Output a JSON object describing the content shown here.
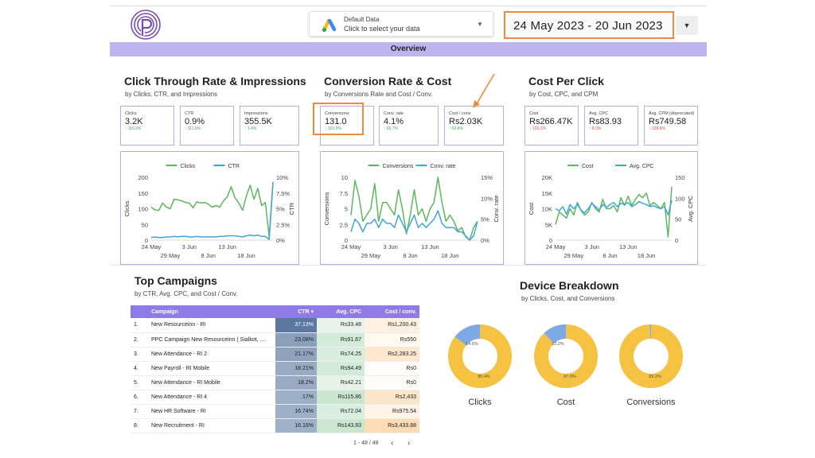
{
  "header": {
    "data_source": {
      "title": "Default Data",
      "subtitle": "Click to select your data",
      "icon": "google-ads-icon"
    },
    "date_range": "24 May 2023 - 20 Jun 2023",
    "overview_label": "Overview"
  },
  "sections": {
    "ctr": {
      "title": "Click Through Rate & Impressions",
      "subtitle": "by Clicks, CTR, and Impressions"
    },
    "conv": {
      "title": "Conversion Rate & Cost",
      "subtitle": "by Conversions Rate and Cost / Conv."
    },
    "cpc": {
      "title": "Cost Per Click",
      "subtitle": "by Cost, CPC, and CPM"
    },
    "campaigns": {
      "title": "Top Campaigns",
      "subtitle": "by CTR, Avg. CPC, and Cost / Conv."
    },
    "device": {
      "title": "Device Breakdown",
      "subtitle": "by Clicks, Cost, and Conversions"
    }
  },
  "kpis": {
    "clicks": {
      "label": "Clicks",
      "value": "3.2K",
      "change": "↑ 116.5%",
      "dir": "up"
    },
    "ctr": {
      "label": "CTR",
      "value": "0.9%",
      "change": "↑ 111.5%",
      "dir": "up"
    },
    "impressions": {
      "label": "Impressions",
      "value": "355.5K",
      "change": "↑ 1.4%",
      "dir": "up"
    },
    "conversions": {
      "label": "Conversions",
      "value": "131.0",
      "change": "↑ 101.5%",
      "dir": "up"
    },
    "conv_rate": {
      "label": "Conv. rate",
      "value": "4.1%",
      "change": "↑ 82.7%",
      "dir": "up"
    },
    "cost_conv": {
      "label": "Cost / conv.",
      "value": "Rs2.03K",
      "change": "↑ 60.8%",
      "dir": "up"
    },
    "cost": {
      "label": "Cost",
      "value": "Rs266.47K",
      "change": "↑ 133.1%",
      "dir": "down"
    },
    "avg_cpc": {
      "label": "Avg. CPC",
      "value": "Rs83.93",
      "change": "↑ 8.3%",
      "dir": "down"
    },
    "avg_cpm": {
      "label": "Avg. CPM (deprecated)",
      "value": "Rs749.58",
      "change": "↑ 128.6%",
      "dir": "down"
    }
  },
  "chart_data": [
    {
      "type": "line",
      "id": "ctr_chart",
      "x_ticks_top": [
        "24 May",
        "3 Jun",
        "13 Jun"
      ],
      "x_ticks_bottom": [
        "29 May",
        "8 Jun",
        "18 Jun"
      ],
      "ylabel": "Clicks",
      "y2label": "CTR",
      "ylim": [
        0,
        200
      ],
      "y2lim": [
        0,
        10
      ],
      "y_ticks": [
        "200",
        "150",
        "100",
        "50",
        "0"
      ],
      "y2_ticks": [
        "10%",
        "7.5%",
        "5%",
        "2.5%",
        "0%"
      ],
      "series": [
        {
          "name": "Clicks",
          "color": "#5cb85c",
          "axis": "left",
          "values": [
            105,
            96,
            95,
            118,
            105,
            100,
            130,
            128,
            125,
            120,
            118,
            103,
            122,
            118,
            120,
            115,
            105,
            110,
            105,
            125,
            138,
            170,
            135,
            118,
            95,
            140,
            175,
            130,
            165,
            110,
            120,
            10,
            185
          ]
        },
        {
          "name": "CTR",
          "color": "#3ea6d8",
          "axis": "right",
          "values": [
            0.4,
            0.5,
            0.4,
            0.4,
            0.5,
            0.5,
            0.6,
            0.5,
            0.6,
            0.6,
            0.5,
            0.5,
            0.6,
            0.5,
            0.5,
            0.5,
            0.5,
            0.5,
            0.6,
            0.6,
            0.7,
            0.7,
            0.7,
            0.6,
            0.5,
            0.7,
            0.8,
            0.7,
            0.8,
            0.6,
            0.6,
            0.1,
            9.2
          ]
        }
      ]
    },
    {
      "type": "line",
      "id": "conv_chart",
      "x_ticks_top": [
        "24 May",
        "3 Jun",
        "13 Jun"
      ],
      "x_ticks_bottom": [
        "29 May",
        "8 Jun",
        "18 Jun"
      ],
      "ylabel": "Conversions",
      "y2label": "Conv. rate",
      "ylim": [
        0,
        10
      ],
      "y2lim": [
        0,
        15
      ],
      "y_ticks": [
        "10",
        "7.5",
        "5",
        "2.5",
        "0"
      ],
      "y2_ticks": [
        "15%",
        "10%",
        "5%",
        "0%"
      ],
      "series": [
        {
          "name": "Conversions",
          "color": "#5cb85c",
          "axis": "left",
          "values": [
            4,
            9.5,
            7,
            3,
            4,
            5,
            9,
            3,
            6,
            6,
            5,
            4,
            8,
            5,
            1,
            4,
            8,
            4,
            5,
            3,
            5,
            6,
            10,
            6,
            3,
            4,
            3,
            1.5,
            2,
            0.5,
            0,
            2,
            3
          ]
        },
        {
          "name": "Conv. rate",
          "color": "#3ea6d8",
          "axis": "right",
          "values": [
            2,
            5,
            4,
            2,
            4,
            4,
            5,
            3,
            5,
            4,
            4,
            3,
            6,
            4,
            2,
            4,
            6,
            3,
            4,
            3,
            4,
            5,
            7,
            4,
            3,
            3,
            3,
            2,
            2,
            1,
            0,
            1,
            4.5
          ]
        }
      ]
    },
    {
      "type": "line",
      "id": "cpc_chart",
      "x_ticks_top": [
        "24 May",
        "3 Jun",
        "13 Jun"
      ],
      "x_ticks_bottom": [
        "29 May",
        "8 Jun",
        "18 Jun"
      ],
      "ylabel": "Cost",
      "y2label": "Avg. CPC",
      "ylim": [
        0,
        20000
      ],
      "y2lim": [
        0,
        150
      ],
      "y_ticks": [
        "20K",
        "15K",
        "10K",
        "5K",
        "0"
      ],
      "y2_ticks": [
        "150",
        "100",
        "50",
        "0"
      ],
      "series": [
        {
          "name": "Cost",
          "color": "#5cb85c",
          "axis": "left",
          "values": [
            5000,
            9000,
            8000,
            7000,
            10000,
            8000,
            12000,
            9500,
            8000,
            9000,
            12000,
            10000,
            9000,
            13000,
            10000,
            10000,
            11000,
            9000,
            13500,
            11000,
            14000,
            11000,
            13000,
            14500,
            13500,
            15000,
            11000,
            12000,
            11000,
            10000,
            12000,
            1000,
            17000
          ]
        },
        {
          "name": "Avg. CPC",
          "color": "#3ea6d8",
          "axis": "right",
          "values": [
            75,
            70,
            80,
            62,
            85,
            75,
            85,
            72,
            65,
            75,
            88,
            80,
            72,
            85,
            78,
            85,
            90,
            80,
            88,
            85,
            90,
            80,
            85,
            92,
            88,
            85,
            80,
            82,
            78,
            75,
            80,
            60,
            95
          ]
        }
      ]
    },
    {
      "type": "pie",
      "id": "donut_clicks",
      "label": "Clicks",
      "slices": [
        {
          "value": 85.4,
          "label": "85.4%",
          "color": "#f5c242"
        },
        {
          "value": 14.6,
          "label": "14.6%",
          "color": "#7fa8e6"
        }
      ]
    },
    {
      "type": "pie",
      "id": "donut_cost",
      "label": "Cost",
      "slices": [
        {
          "value": 87.8,
          "label": "87.8%",
          "color": "#f5c242"
        },
        {
          "value": 12.2,
          "label": "12.2%",
          "color": "#7fa8e6"
        }
      ]
    },
    {
      "type": "pie",
      "id": "donut_conversions",
      "label": "Conversions",
      "slices": [
        {
          "value": 99.2,
          "label": "99.2%",
          "color": "#f5c242"
        },
        {
          "value": 0.8,
          "label": "",
          "color": "#7fa8e6"
        }
      ]
    }
  ],
  "table": {
    "columns": [
      "Campaign",
      "CTR ▾",
      "Avg. CPC",
      "Cost / conv."
    ],
    "rows": [
      {
        "num": "1.",
        "campaign": "New Resourceinn - RI",
        "ctr": "37.13%",
        "cpc": "Rs33.48",
        "cost_conv": "Rs1,200.43",
        "ctr_level": 1.0,
        "cpc_level": 0.29,
        "cost_level": 0.35
      },
      {
        "num": "2.",
        "campaign": "PPC Campaign New Resourceinn ( Sialkot, ...",
        "ctr": "23.08%",
        "cpc": "Rs91.67",
        "cost_conv": "Rs550",
        "ctr_level": 0.62,
        "cpc_level": 0.79,
        "cost_level": 0.16
      },
      {
        "num": "3.",
        "campaign": "New Attendance - RI 2",
        "ctr": "21.17%",
        "cpc": "Rs74.25",
        "cost_conv": "Rs2,283.25",
        "ctr_level": 0.57,
        "cpc_level": 0.64,
        "cost_level": 0.66
      },
      {
        "num": "4.",
        "campaign": "New Payroll - RI Mobile",
        "ctr": "18.21%",
        "cpc": "Rs94.49",
        "cost_conv": "Rs0",
        "ctr_level": 0.49,
        "cpc_level": 0.82,
        "cost_level": 0.0
      },
      {
        "num": "5.",
        "campaign": "New Attendance - RI Mobile",
        "ctr": "18.2%",
        "cpc": "Rs42.21",
        "cost_conv": "Rs0",
        "ctr_level": 0.49,
        "cpc_level": 0.37,
        "cost_level": 0.0
      },
      {
        "num": "6.",
        "campaign": "New Attendance - RI 4",
        "ctr": "17%",
        "cpc": "Rs115.86",
        "cost_conv": "Rs2,433",
        "ctr_level": 0.46,
        "cpc_level": 1.0,
        "cost_level": 0.71
      },
      {
        "num": "7.",
        "campaign": "New HR Software - RI",
        "ctr": "16.74%",
        "cpc": "Rs72.04",
        "cost_conv": "Rs975.54",
        "ctr_level": 0.45,
        "cpc_level": 0.62,
        "cost_level": 0.28
      },
      {
        "num": "8.",
        "campaign": "New Recruitment - RI",
        "ctr": "16.16%",
        "cpc": "Rs143.83",
        "cost_conv": "Rs3,433.88",
        "ctr_level": 0.44,
        "cpc_level": 1.0,
        "cost_level": 1.0
      }
    ],
    "pager": "1 - 48 / 48"
  },
  "colors": {
    "accent": "#8e7be8",
    "highlight": "#f08a3c",
    "green": "#5cb85c",
    "blue": "#3ea6d8"
  }
}
